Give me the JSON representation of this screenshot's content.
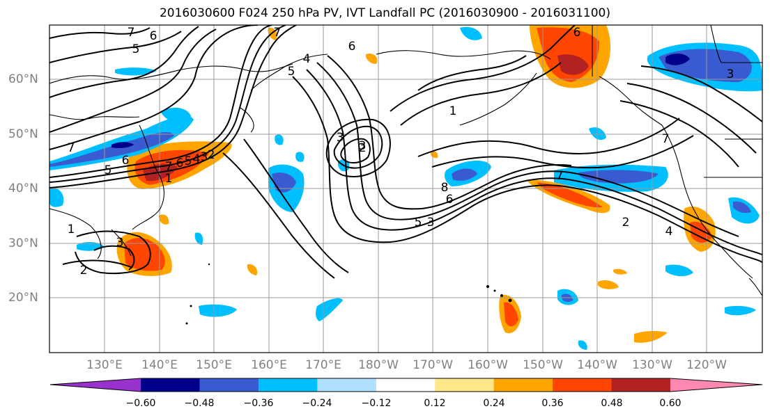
{
  "title": "2016030600 F024 250 hPa PV, IVT Landfall PC (2016030900 - 2016031100)",
  "lat_labels": [
    "60°N",
    "50°N",
    "40°N",
    "30°N",
    "20°N"
  ],
  "lon_labels": [
    "130°E",
    "140°E",
    "150°E",
    "160°E",
    "170°E",
    "180°W",
    "170°W",
    "160°W",
    "150°W",
    "140°W",
    "130°W",
    "120°W"
  ],
  "contour_labels": [
    "7",
    "6",
    "5",
    "7",
    "6",
    "5",
    "7",
    "6",
    "5",
    "4",
    "3",
    "2",
    "1",
    "7",
    "6",
    "5",
    "4",
    "3",
    "2",
    "1",
    "3",
    "2",
    "8",
    "6",
    "5",
    "3",
    "7",
    "2",
    "4",
    "3",
    "1",
    "7",
    "6",
    "3"
  ],
  "colorbar": {
    "colors": [
      "#9932cc",
      "#00008b",
      "#3a5bd0",
      "#00bfff",
      "#b0e0ff",
      "#ffffff",
      "#ffe88a",
      "#ffa500",
      "#ff4500",
      "#b22222",
      "#ff88b0"
    ],
    "tick_labels": [
      "−0.60",
      "−0.48",
      "−0.36",
      "−0.24",
      "−0.12",
      "0.12",
      "0.24",
      "0.36",
      "0.48",
      "0.60"
    ]
  }
}
